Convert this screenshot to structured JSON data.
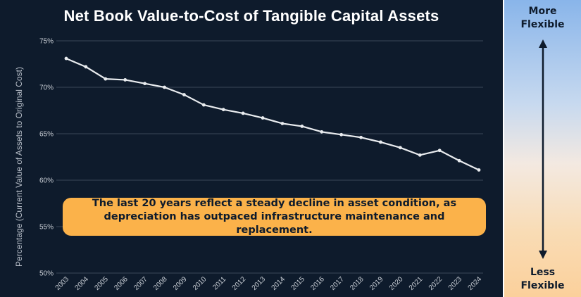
{
  "chart_data": {
    "type": "line",
    "title": "Net Book Value-to-Cost of Tangible Capital Assets",
    "xlabel": "",
    "ylabel": "Percentage (Current Value of Assets to Original Cost)",
    "ylim": [
      50,
      75
    ],
    "y_ticks": [
      50,
      55,
      60,
      65,
      70,
      75
    ],
    "y_tick_labels": [
      "50%",
      "55%",
      "60%",
      "65%",
      "70%",
      "75%"
    ],
    "categories": [
      "2003",
      "2004",
      "2005",
      "2006",
      "2007",
      "2008",
      "2009",
      "2010",
      "2011",
      "2012",
      "2013",
      "2014",
      "2015",
      "2016",
      "2017",
      "2018",
      "2019",
      "2020",
      "2021",
      "2022",
      "2023",
      "2024"
    ],
    "series": [
      {
        "name": "Net Book Value-to-Cost",
        "values": [
          73.1,
          72.2,
          70.9,
          70.8,
          70.4,
          70.0,
          69.2,
          68.1,
          67.6,
          67.2,
          66.7,
          66.1,
          65.8,
          65.2,
          64.9,
          64.6,
          64.1,
          63.5,
          62.7,
          63.2,
          62.1,
          61.1
        ]
      }
    ],
    "grid": true,
    "annotation": "The last 20 years reflect a steady decline in asset condition, as depreciation has outpaced infrastructure maintenance and replacement."
  },
  "flexibility_scale": {
    "top_label": "More Flexible",
    "bottom_label": "Less Flexible"
  },
  "colors": {
    "background": "#0e1b2c",
    "line": "#e9ecef",
    "gridline": "#3a4757",
    "callout": "#fbb24a"
  }
}
